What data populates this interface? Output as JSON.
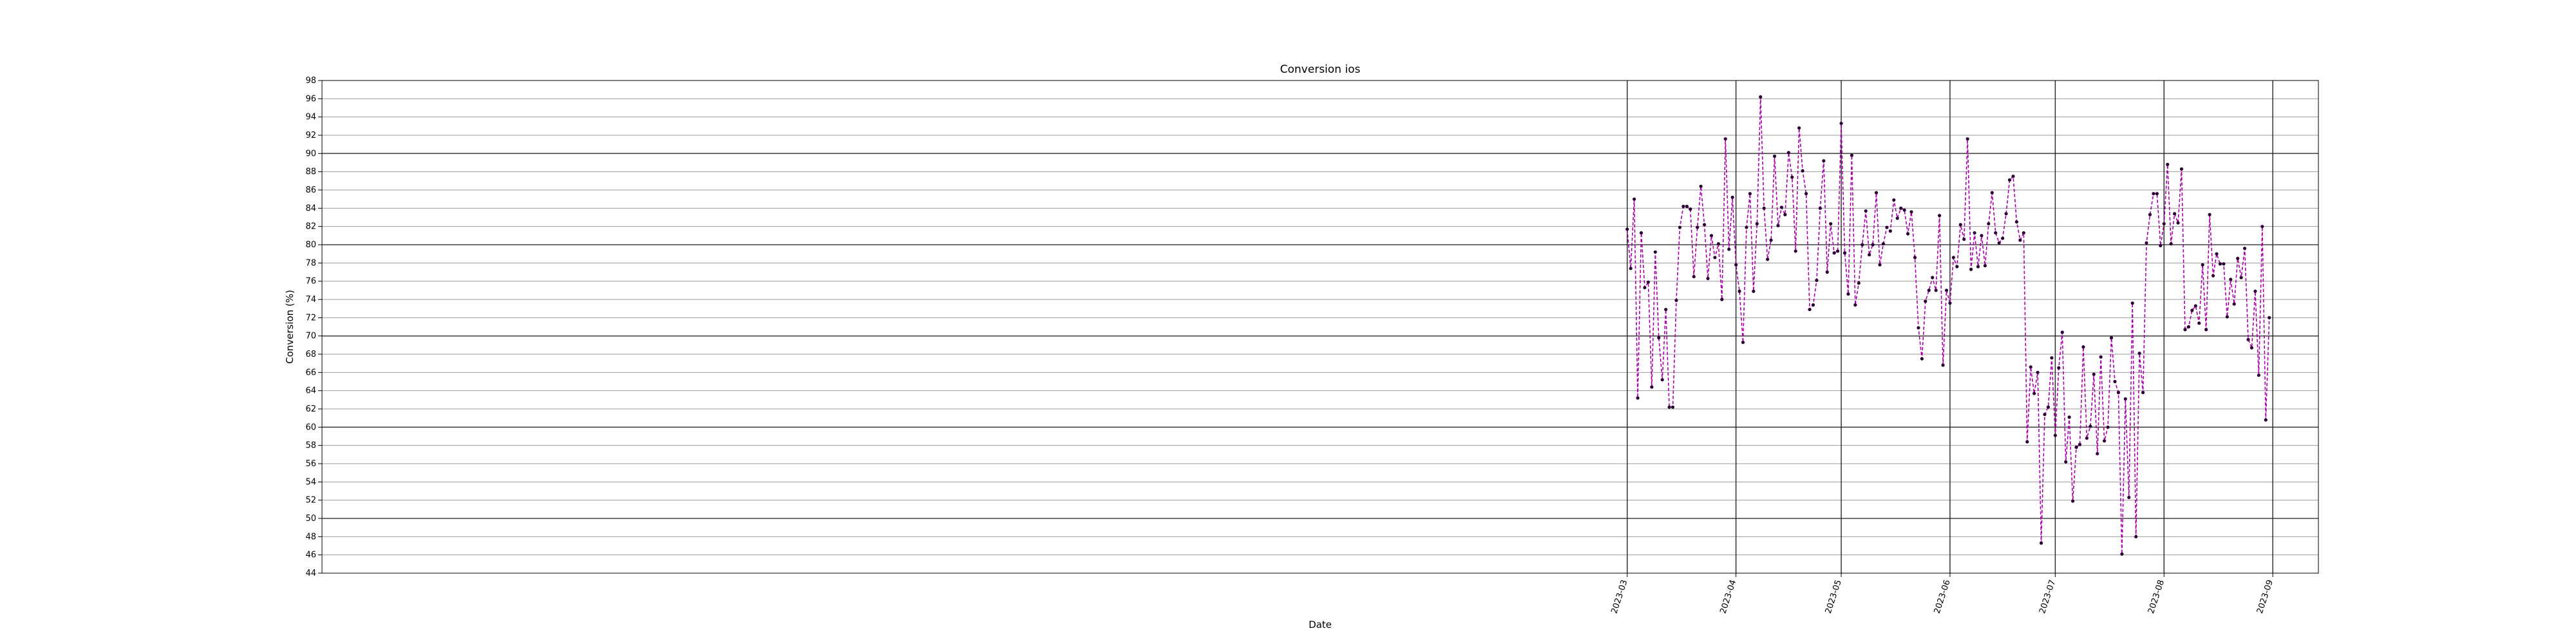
{
  "chart_data": {
    "type": "line",
    "title": "Conversion ios",
    "xlabel": "Date",
    "ylabel": "Conversion (%)",
    "ylim": [
      44,
      98
    ],
    "y_ticks": [
      44,
      46,
      48,
      50,
      52,
      54,
      56,
      58,
      60,
      62,
      64,
      66,
      68,
      70,
      72,
      74,
      76,
      78,
      80,
      82,
      84,
      86,
      88,
      90,
      92,
      94,
      96,
      98
    ],
    "x_ticks": [
      "2023-03-01",
      "2023-04-01",
      "2023-05-01",
      "2023-06-01",
      "2023-07-01",
      "2023-08-01",
      "2023-09-01"
    ],
    "x_tick_labels": [
      "2023-03",
      "2023-04",
      "2023-05",
      "2023-06",
      "2023-07",
      "2023-08",
      "2023-09"
    ],
    "x_range": [
      "2022-02-22",
      "2023-09-14"
    ],
    "grid": "major lines darker every 10, minor every 2; vertical lines at month starts",
    "colors": {
      "line": "#aa00aa",
      "marker": "#2b0033",
      "grid_major": "#444444",
      "grid_minor": "#9a9a9a"
    },
    "series": [
      {
        "start_date": "2023-03-01",
        "values": [
          81.7,
          77.4,
          85.0,
          63.2,
          81.3,
          75.3,
          75.9,
          64.4,
          79.2,
          69.8,
          65.2,
          72.9,
          62.2,
          62.2,
          73.9,
          81.9,
          84.2,
          84.2,
          83.9,
          76.5,
          81.9,
          86.4,
          82.2,
          76.3,
          81.0,
          78.6,
          80.1,
          74.0,
          91.6,
          79.5,
          85.2,
          77.8,
          74.9,
          69.3,
          81.9,
          85.6,
          74.9,
          82.3,
          96.2,
          84.0,
          78.4,
          80.5,
          89.7,
          82.1,
          84.1,
          83.3,
          90.1,
          87.4,
          79.3,
          92.8,
          88.1,
          85.6,
          72.9,
          73.4,
          76.1,
          84.0,
          89.2,
          77.0,
          82.3,
          79.1,
          79.3,
          93.3,
          79.1,
          74.6,
          89.8,
          73.4,
          75.8,
          80.0,
          83.7,
          78.9,
          80.0,
          85.7,
          77.8,
          80.1,
          81.9,
          81.5,
          84.9,
          82.9,
          84.0,
          83.8,
          81.2,
          83.6,
          78.6,
          70.9,
          67.5,
          73.8,
          75.0,
          76.4,
          75.0,
          83.2,
          66.8,
          75.0,
          73.6,
          78.6,
          77.6,
          82.2,
          80.6,
          91.6,
          77.3,
          81.3,
          77.6,
          81.0,
          77.7,
          82.3,
          85.7,
          81.3,
          80.2,
          80.7,
          83.4,
          87.1,
          87.5,
          82.5,
          80.5,
          81.3,
          58.4,
          66.6,
          63.7,
          66.0,
          47.3,
          61.4,
          62.2,
          67.6,
          59.1,
          66.5,
          70.4,
          56.2,
          61.1,
          51.9,
          57.8,
          58.1,
          68.8,
          58.8,
          60.1,
          65.8,
          57.1,
          67.7,
          58.5,
          60.0,
          69.8,
          65.0,
          63.8,
          46.1,
          63.1,
          52.3,
          73.6,
          48.0,
          68.1,
          63.8,
          80.2,
          83.3,
          85.6,
          85.6,
          79.9,
          82.3,
          88.8,
          80.1,
          83.4,
          82.4,
          88.3,
          70.7,
          71.0,
          72.8,
          73.3,
          71.4,
          77.8,
          70.7,
          83.3,
          76.6,
          79.0,
          77.9,
          77.9,
          72.1,
          76.2,
          73.5,
          78.5,
          76.4,
          79.6,
          69.6,
          68.7,
          74.9,
          65.7,
          82.0,
          60.8,
          72.0
        ]
      }
    ]
  }
}
